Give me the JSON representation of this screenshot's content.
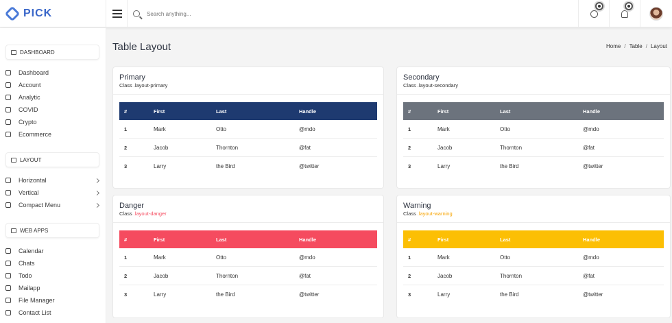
{
  "brand": {
    "name": "PICK"
  },
  "search": {
    "placeholder": "Search anything..."
  },
  "sidebar": {
    "sections": [
      {
        "title": "DASHBOARD",
        "items": [
          {
            "label": "Dashboard",
            "icon": "rocket-icon"
          },
          {
            "label": "Account",
            "icon": "layers-icon"
          },
          {
            "label": "Analytic",
            "icon": "stack-icon"
          },
          {
            "label": "COVID",
            "icon": "headphones-icon"
          },
          {
            "label": "Crypto",
            "icon": "coin-icon"
          },
          {
            "label": "Ecommerce",
            "icon": "bag-icon"
          }
        ]
      },
      {
        "title": "LAYOUT",
        "items": [
          {
            "label": "Horizontal",
            "icon": "dots-horizontal-icon"
          },
          {
            "label": "Vertical",
            "icon": "dots-vertical-icon"
          },
          {
            "label": "Compact Menu",
            "icon": "grid-icon"
          }
        ]
      },
      {
        "title": "WEB APPS",
        "items": [
          {
            "label": "Calendar",
            "icon": "calendar-icon"
          },
          {
            "label": "Chats",
            "icon": "chat-icon"
          },
          {
            "label": "Todo",
            "icon": "check-circle-icon"
          },
          {
            "label": "Mailapp",
            "icon": "mail-icon"
          },
          {
            "label": "File Manager",
            "icon": "folder-icon"
          },
          {
            "label": "Contact List",
            "icon": "contact-icon"
          }
        ]
      }
    ]
  },
  "page": {
    "title": "Table Layout",
    "breadcrumb": [
      "Home",
      "Table",
      "Layout"
    ]
  },
  "columns": [
    "#",
    "First",
    "Last",
    "Handle"
  ],
  "rows": [
    [
      "1",
      "Mark",
      "Otto",
      "@mdo"
    ],
    [
      "2",
      "Jacob",
      "Thornton",
      "@fat"
    ],
    [
      "3",
      "Larry",
      "the Bird",
      "@twitter"
    ]
  ],
  "cards": [
    {
      "title": "Primary",
      "class_prefix": "Class",
      "class_name": ".layout-primary",
      "header_bg": "#1e3a70",
      "header_fg": "#ffffff",
      "class_color": "#333333"
    },
    {
      "title": "Secondary",
      "class_prefix": "Class",
      "class_name": ".layout-secondary",
      "header_bg": "#6c737d",
      "header_fg": "#ffffff",
      "class_color": "#333333"
    },
    {
      "title": "Danger",
      "class_prefix": "Class",
      "class_name": ".layout-danger",
      "header_bg": "#f54b5f",
      "header_fg": "#ffffff",
      "class_color": "#f54b5f"
    },
    {
      "title": "Warning",
      "class_prefix": "Class",
      "class_name": ".layout-warning",
      "header_bg": "#fcbf04",
      "header_fg": "#ffffff",
      "class_color": "#f7a400"
    }
  ]
}
